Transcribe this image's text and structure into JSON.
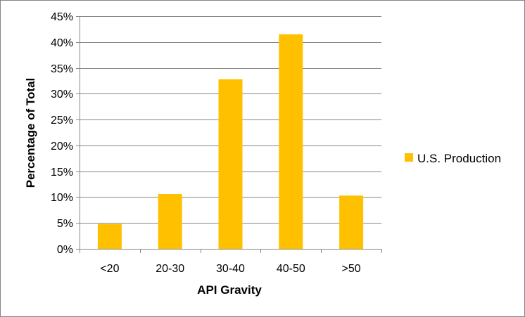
{
  "chart_data": {
    "type": "bar",
    "title": "",
    "xlabel": "API Gravity",
    "ylabel": "Percentage of Total",
    "categories": [
      "<20",
      "20-30",
      "30-40",
      "40-50",
      ">50"
    ],
    "series": [
      {
        "name": "U.S. Production",
        "values": [
          4.8,
          10.6,
          32.8,
          41.5,
          10.3
        ],
        "color": "#FFC000"
      }
    ],
    "ylim": [
      0,
      45
    ],
    "yticks": [
      0,
      5,
      10,
      15,
      20,
      25,
      30,
      35,
      40,
      45
    ],
    "ytick_labels": [
      "0%",
      "5%",
      "10%",
      "15%",
      "20%",
      "25%",
      "30%",
      "35%",
      "40%",
      "45%"
    ],
    "grid": true,
    "gridline_color": "#868686",
    "legend_position": "right"
  }
}
